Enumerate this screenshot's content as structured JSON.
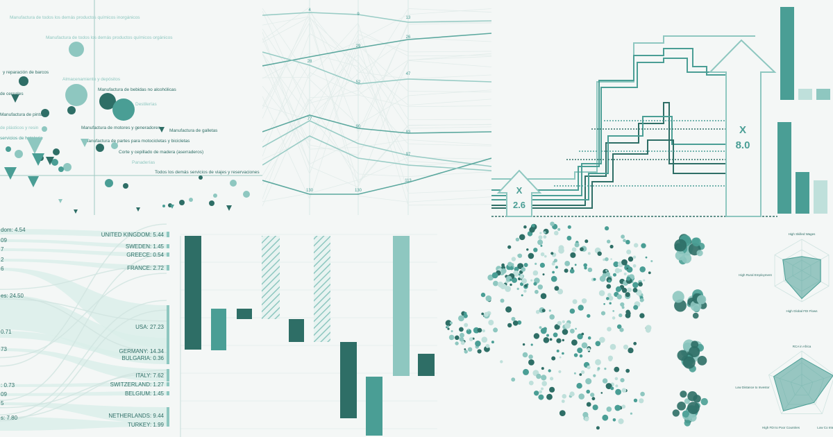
{
  "palette": {
    "dark": "#2e6e66",
    "mid": "#4a9e95",
    "light": "#8ec7c0",
    "pale": "#bfe0db",
    "faint": "#dbeeea",
    "axis": "#9ec9c3",
    "background": "#f4f7f6"
  },
  "panels": {
    "scatter": {
      "type": "scatter",
      "labels": [
        "Manufactura de todos los demás productos químicos inorgánicos",
        "Manufactura de todos los demás productos químicos orgánicos",
        "y reparación de barcos",
        "Almacenamiento y depósitos",
        "de cereales",
        "Manufactura de bebidas no alcohólicas",
        "Destilerías",
        "Manufactura de pinturas",
        "Manufactura de motores y generadores",
        "Manufactura de galletas",
        "de plásticos y resin",
        "servicios de hotelería",
        "Manufactura de partes para motocicletas y bicicletas",
        "Corte y cepillado de madera (aserraderos)",
        "Panaderías",
        "Todos los demás servicios de viajes y reservaciones"
      ]
    },
    "parallel": {
      "type": "line",
      "axes": [
        {
          "ticks": [
            "4",
            "28",
            "77",
            "130"
          ]
        },
        {
          "ticks": [
            "9",
            "29",
            "52",
            "90",
            "130"
          ]
        },
        {
          "ticks": [
            "13",
            "26",
            "47",
            "83",
            "97",
            "113"
          ]
        }
      ]
    },
    "steps": {
      "type": "line",
      "callouts": [
        {
          "prefix": "X",
          "value": "2.6"
        },
        {
          "prefix": "X",
          "value": "8.0"
        }
      ]
    },
    "minibars": {
      "type": "bar"
    },
    "sankey": {
      "type": "bar",
      "left_labels": [
        "dom: 4.54",
        "09",
        "7",
        "2",
        "6",
        "es: 24.50",
        "0.71",
        "73",
        ": 0.73",
        "09",
        "5",
        "s: 7.80"
      ],
      "right_nodes": [
        {
          "label": "UNITED KINGDOM: 5.44",
          "value": 5.44
        },
        {
          "label": "SWEDEN: 1.45",
          "value": 1.45
        },
        {
          "label": "GREECE: 0.54",
          "value": 0.54
        },
        {
          "label": "FRANCE: 2.72",
          "value": 2.72
        },
        {
          "label": "USA: 27.23",
          "value": 27.23
        },
        {
          "label": "GERMANY: 14.34",
          "value": 14.34
        },
        {
          "label": "BULGARIA: 0.36",
          "value": 0.36
        },
        {
          "label": "ITALY: 7.62",
          "value": 7.62
        },
        {
          "label": "SWITZERLAND: 1.27",
          "value": 1.27
        },
        {
          "label": "BELGIUM: 1.45",
          "value": 1.45
        },
        {
          "label": "NETHERLANDS: 9.44",
          "value": 9.44
        },
        {
          "label": "TURKEY: 1.99",
          "value": 1.99
        }
      ]
    },
    "waterfall": {
      "type": "bar"
    },
    "bubbles": {
      "type": "scatter"
    },
    "radar": {
      "type": "other",
      "top_axes": [
        "High Skilled Wages",
        "High Rural Employment",
        "High Global FDI Flows"
      ],
      "bottom_axes": [
        "RCA in Africa",
        "Low Distance to Investor",
        "High FDI to Poor Countries",
        "Low Co Inter"
      ]
    }
  }
}
